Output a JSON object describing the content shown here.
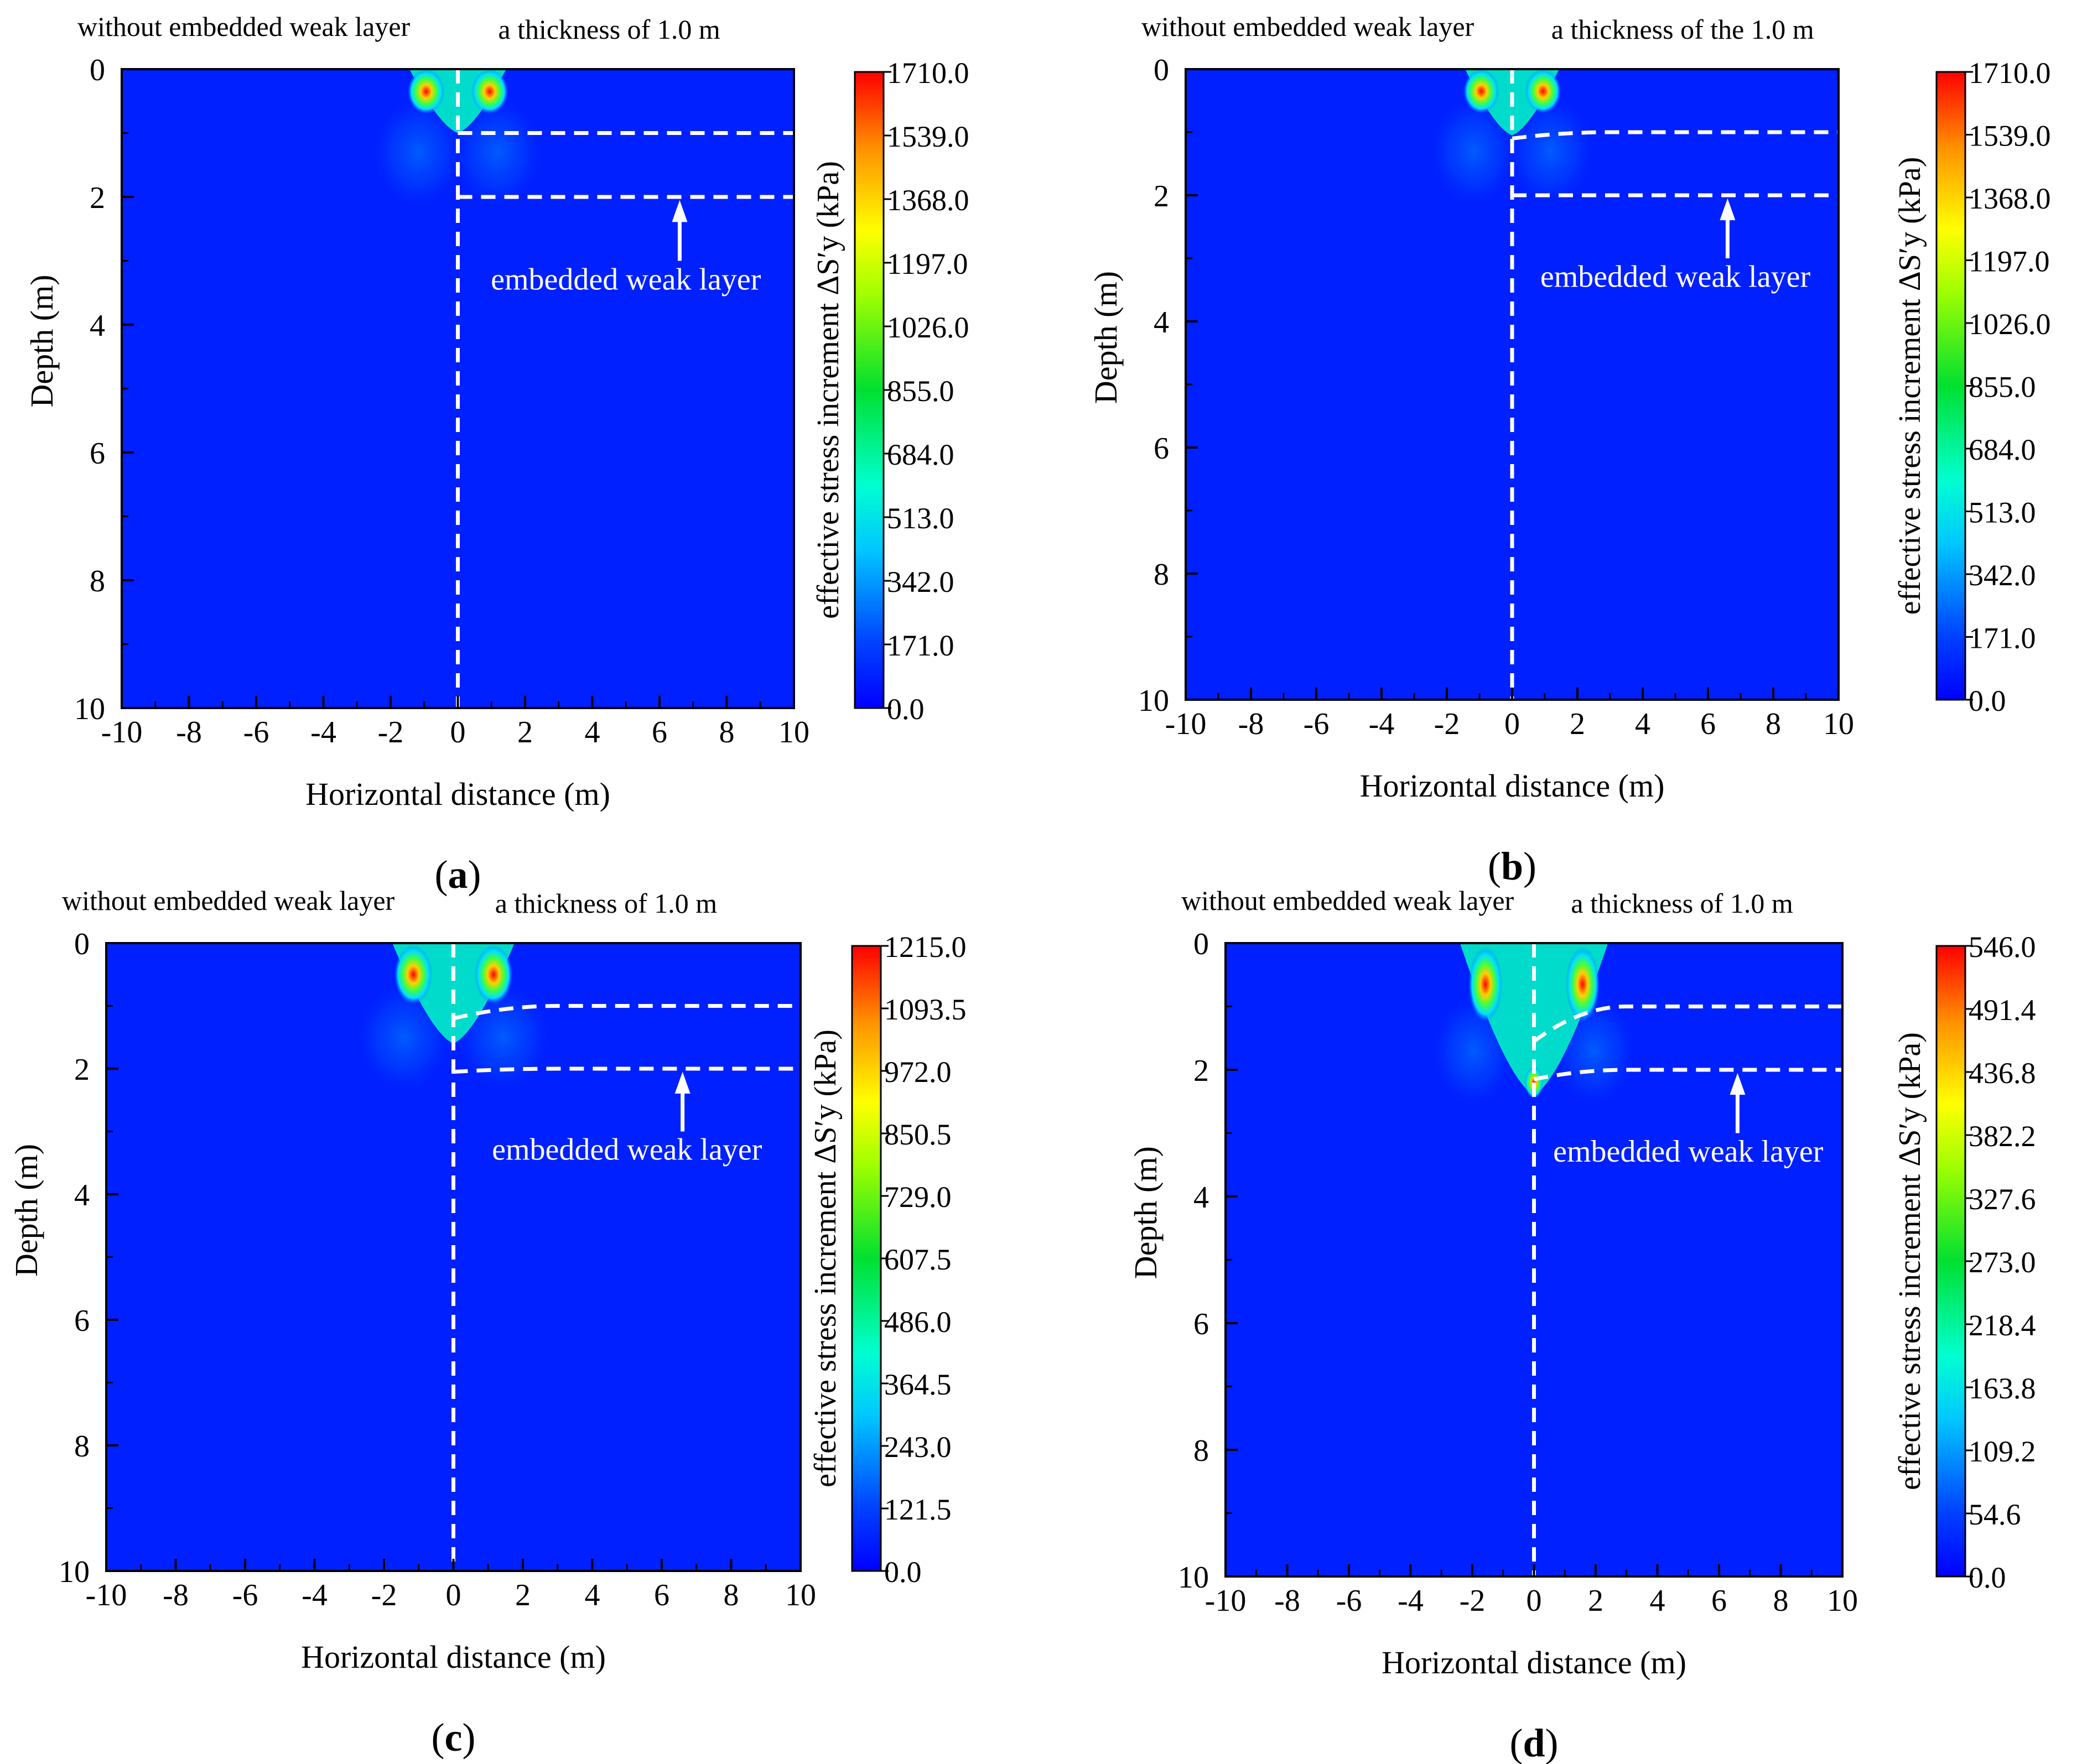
{
  "chart_data": [
    {
      "type": "heatmap",
      "panel_label": "a",
      "title_left": "without embedded weak layer",
      "title_right": "a thickness of 1.0 m",
      "xlabel": "Horizontal distance  (m)",
      "ylabel": "Depth (m)",
      "xlim": [
        -10,
        10
      ],
      "ylim": [
        0,
        10
      ],
      "x_ticks": [
        "-10",
        "-8",
        "-6",
        "-4",
        "-2",
        "0",
        "2",
        "4",
        "6",
        "8",
        "10"
      ],
      "y_ticks": [
        "0",
        "2",
        "4",
        "6",
        "8",
        "10"
      ],
      "colorbar_title": "effective stress increment ΔS′y (kPa)",
      "colorbar_ticks": [
        "1710.0",
        "1539.0",
        "1368.0",
        "1197.0",
        "1026.0",
        "855.0",
        "684.0",
        "513.0",
        "342.0",
        "171.0",
        "0.0"
      ],
      "colorbar_range": [
        0,
        1710
      ],
      "annotation": "embedded weak layer",
      "weak_layer_lines": {
        "upper_depth": 1.0,
        "lower_depth": 2.0,
        "left_edge_upper": 1.0,
        "left_edge_lower": 2.0
      }
    },
    {
      "type": "heatmap",
      "panel_label": "b",
      "title_left": "without embedded weak layer",
      "title_right": "a thickness of the 1.0 m",
      "xlabel": "Horizontal distance  (m)",
      "ylabel": "Depth (m)",
      "xlim": [
        -10,
        10
      ],
      "ylim": [
        0,
        10
      ],
      "x_ticks": [
        "-10",
        "-8",
        "-6",
        "-4",
        "-2",
        "0",
        "2",
        "4",
        "6",
        "8",
        "10"
      ],
      "y_ticks": [
        "0",
        "2",
        "4",
        "6",
        "8",
        "10"
      ],
      "colorbar_title": "effective stress increment ΔS′y (kPa)",
      "colorbar_ticks": [
        "1710.0",
        "1539.0",
        "1368.0",
        "1197.0",
        "1026.0",
        "855.0",
        "684.0",
        "513.0",
        "342.0",
        "171.0",
        "0.0"
      ],
      "colorbar_range": [
        0,
        1710
      ],
      "annotation": "embedded weak layer",
      "weak_layer_lines": {
        "upper_depth": 1.0,
        "lower_depth": 2.0,
        "left_edge_upper": 1.1,
        "left_edge_lower": 2.0
      }
    },
    {
      "type": "heatmap",
      "panel_label": "c",
      "title_left": "without embedded weak layer",
      "title_right": "a thickness of 1.0 m",
      "xlabel": "Horizontal distance  (m)",
      "ylabel": "Depth (m)",
      "xlim": [
        -10,
        10
      ],
      "ylim": [
        0,
        10
      ],
      "x_ticks": [
        "-10",
        "-8",
        "-6",
        "-4",
        "-2",
        "0",
        "2",
        "4",
        "6",
        "8",
        "10"
      ],
      "y_ticks": [
        "0",
        "2",
        "4",
        "6",
        "8",
        "10"
      ],
      "colorbar_title": "effective stress increment ΔS′y (kPa)",
      "colorbar_ticks": [
        "1215.0",
        "1093.5",
        "972.0",
        "850.5",
        "729.0",
        "607.5",
        "486.0",
        "364.5",
        "243.0",
        "121.5",
        "0.0"
      ],
      "colorbar_range": [
        0,
        1215
      ],
      "annotation": "embedded weak layer",
      "weak_layer_lines": {
        "upper_depth": 1.0,
        "lower_depth": 2.0,
        "left_edge_upper": 1.2,
        "left_edge_lower": 2.05
      }
    },
    {
      "type": "heatmap",
      "panel_label": "d",
      "title_left": "without embedded weak layer",
      "title_right": "a thickness of 1.0 m",
      "xlabel": "Horizontal distance  (m)",
      "ylabel": "Depth (m)",
      "xlim": [
        -10,
        10
      ],
      "ylim": [
        0,
        10
      ],
      "x_ticks": [
        "-10",
        "-8",
        "-6",
        "-4",
        "-2",
        "0",
        "2",
        "4",
        "6",
        "8",
        "10"
      ],
      "y_ticks": [
        "0",
        "2",
        "4",
        "6",
        "8",
        "10"
      ],
      "colorbar_title": "effective stress increment ΔS′y (kPa)",
      "colorbar_ticks": [
        "546.0",
        "491.4",
        "436.8",
        "382.2",
        "327.6",
        "273.0",
        "218.4",
        "163.8",
        "109.2",
        "54.6",
        "0.0"
      ],
      "colorbar_range": [
        0,
        546
      ],
      "annotation": "embedded weak layer",
      "weak_layer_lines": {
        "upper_depth": 1.0,
        "lower_depth": 2.0,
        "left_edge_upper": 1.55,
        "left_edge_lower": 2.15
      }
    }
  ]
}
